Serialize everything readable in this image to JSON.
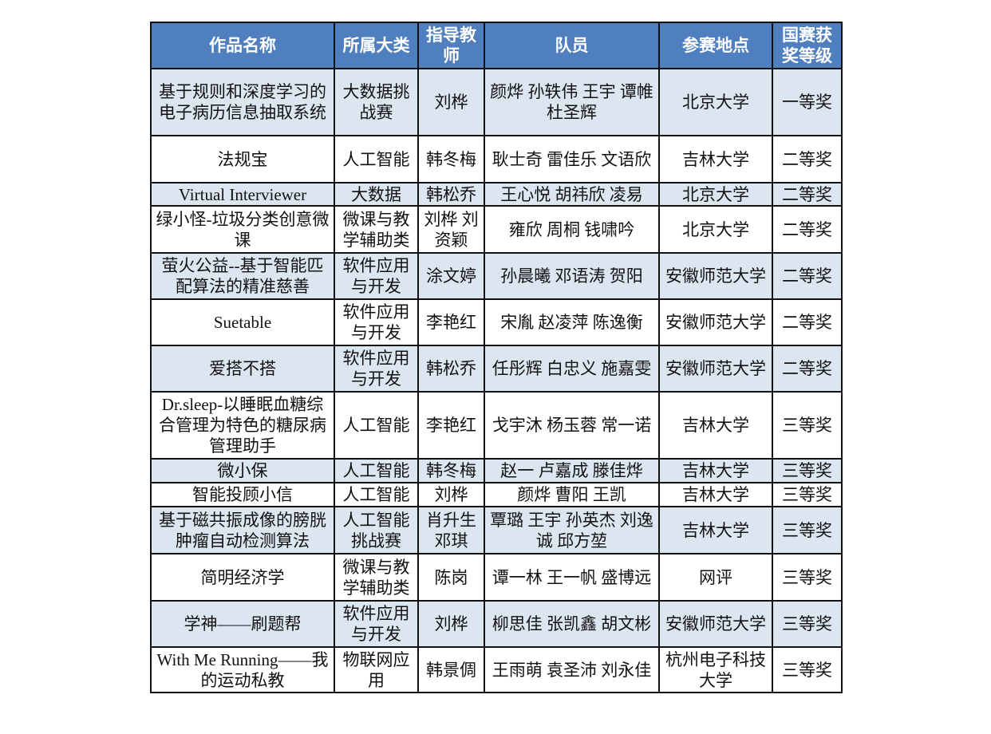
{
  "colors": {
    "header_bg": "#4f7fbe",
    "header_text": "#ffffff",
    "shaded_row": "#dce6f1"
  },
  "headers": [
    "作品名称",
    "所属大类",
    "指导教师",
    "队员",
    "参赛地点",
    "国赛获奖等级"
  ],
  "rows": [
    [
      "基于规则和深度学习的电子病历信息抽取系统",
      "大数据挑战赛",
      "刘桦",
      "颜烨 孙轶伟 王宇 谭帷 杜圣辉",
      "北京大学",
      "一等奖"
    ],
    [
      "法规宝",
      "人工智能",
      "韩冬梅",
      "耿士奇 雷佳乐 文语欣",
      "吉林大学",
      "二等奖"
    ],
    [
      "Virtual Interviewer",
      "大数据",
      "韩松乔",
      "王心悦 胡祎欣 凌易",
      "北京大学",
      "二等奖"
    ],
    [
      "绿小怪-垃圾分类创意微课",
      "微课与教学辅助类",
      "刘桦 刘资颖",
      "雍欣 周桐 钱啸吟",
      "北京大学",
      "二等奖"
    ],
    [
      "萤火公益--基于智能匹配算法的精准慈善",
      "软件应用与开发",
      "涂文婷",
      "孙晨曦 邓语涛 贺阳",
      "安徽师范大学",
      "二等奖"
    ],
    [
      "Suetable",
      "软件应用与开发",
      "李艳红",
      "宋胤 赵凌萍 陈逸衡",
      "安徽师范大学",
      "二等奖"
    ],
    [
      "爱搭不搭",
      "软件应用与开发",
      "韩松乔",
      "任彤辉 白忠义 施嘉雯",
      "安徽师范大学",
      "二等奖"
    ],
    [
      "Dr.sleep-以睡眠血糖综合管理为特色的糖尿病管理助手",
      "人工智能",
      "李艳红",
      "戈宇沐 杨玉蓉 常一诺",
      "吉林大学",
      "三等奖"
    ],
    [
      "微小保",
      "人工智能",
      "韩冬梅",
      "赵一 卢嘉成 滕佳烨",
      "吉林大学",
      "三等奖"
    ],
    [
      "智能投顾小信",
      "人工智能",
      "刘桦",
      "颜烨 曹阳 王凯",
      "吉林大学",
      "三等奖"
    ],
    [
      "基于磁共振成像的膀胱肿瘤自动检测算法",
      "人工智能挑战赛",
      "肖升生 邓琪",
      "覃璐 王宇 孙英杰 刘逸诚 邱方堃",
      "吉林大学",
      "三等奖"
    ],
    [
      "简明经济学",
      "微课与教学辅助类",
      "陈岗",
      "谭一林 王一帆 盛博远",
      "网评",
      "三等奖"
    ],
    [
      "学神——刷题帮",
      "软件应用与开发",
      "刘桦",
      "柳思佳 张凯鑫 胡文彬",
      "安徽师范大学",
      "三等奖"
    ],
    [
      "With Me Running——我的运动私教",
      "物联网应用",
      "韩景倜",
      "王雨萌 袁圣沛 刘永佳",
      "杭州电子科技大学",
      "三等奖"
    ]
  ]
}
